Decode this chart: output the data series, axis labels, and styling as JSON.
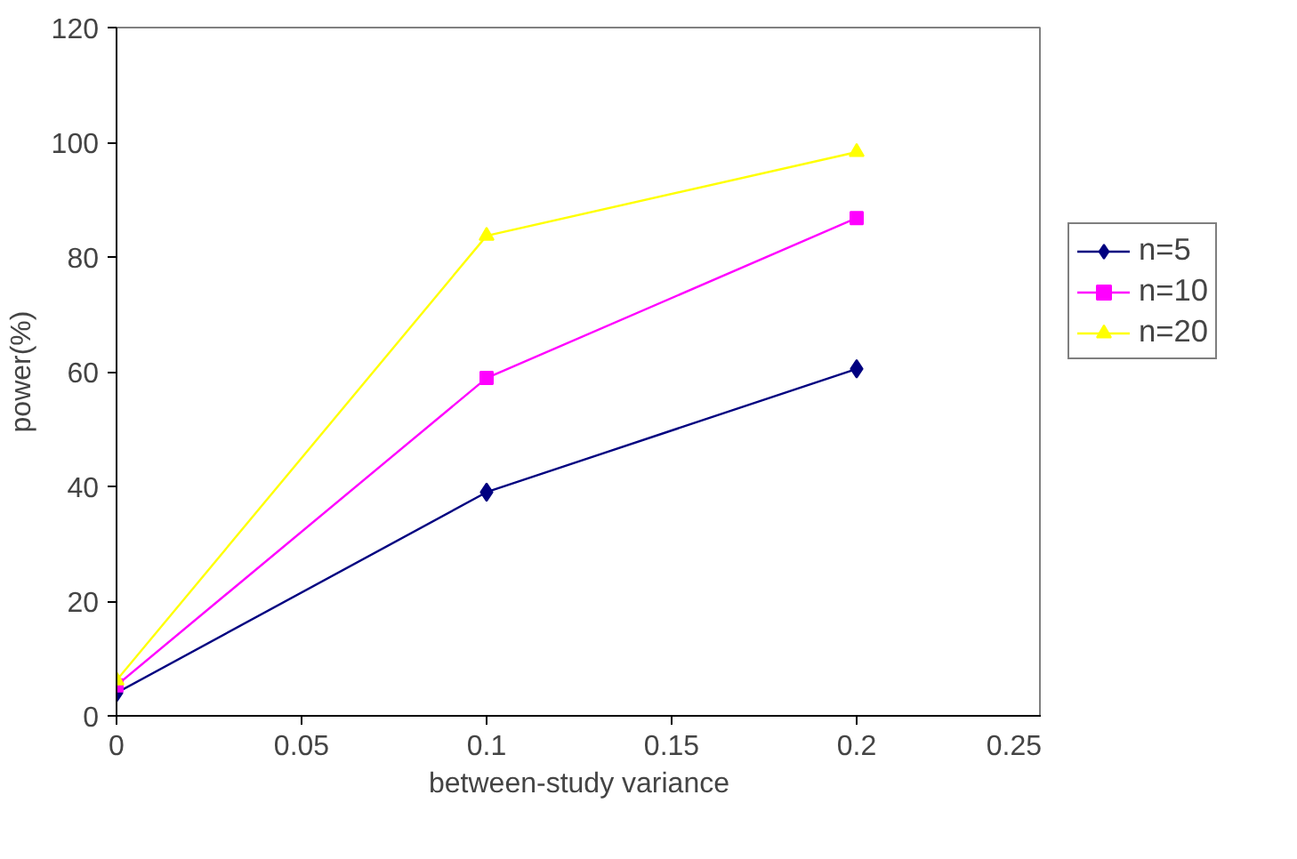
{
  "chart_data": {
    "type": "line",
    "xlabel": "between-study variance",
    "ylabel": "power(%)",
    "x": [
      0,
      0.1,
      0.2
    ],
    "series": [
      {
        "name": "n=5",
        "color": "#000080",
        "marker": "diamond",
        "values": [
          4.0,
          39.0,
          60.5
        ]
      },
      {
        "name": "n=10",
        "color": "#ff00ff",
        "marker": "square",
        "values": [
          5.3,
          58.9,
          86.8
        ]
      },
      {
        "name": "n=20",
        "color": "#ffff00",
        "marker": "triangle",
        "values": [
          6.2,
          83.7,
          98.3
        ]
      }
    ],
    "xlim": [
      0,
      0.25
    ],
    "xticks": [
      0,
      0.05,
      0.1,
      0.15,
      0.2,
      0.25
    ],
    "ylim": [
      0,
      120
    ],
    "yticks": [
      0,
      20,
      40,
      60,
      80,
      100,
      120
    ],
    "grid": false,
    "legend": "right",
    "line_style": "solid"
  }
}
